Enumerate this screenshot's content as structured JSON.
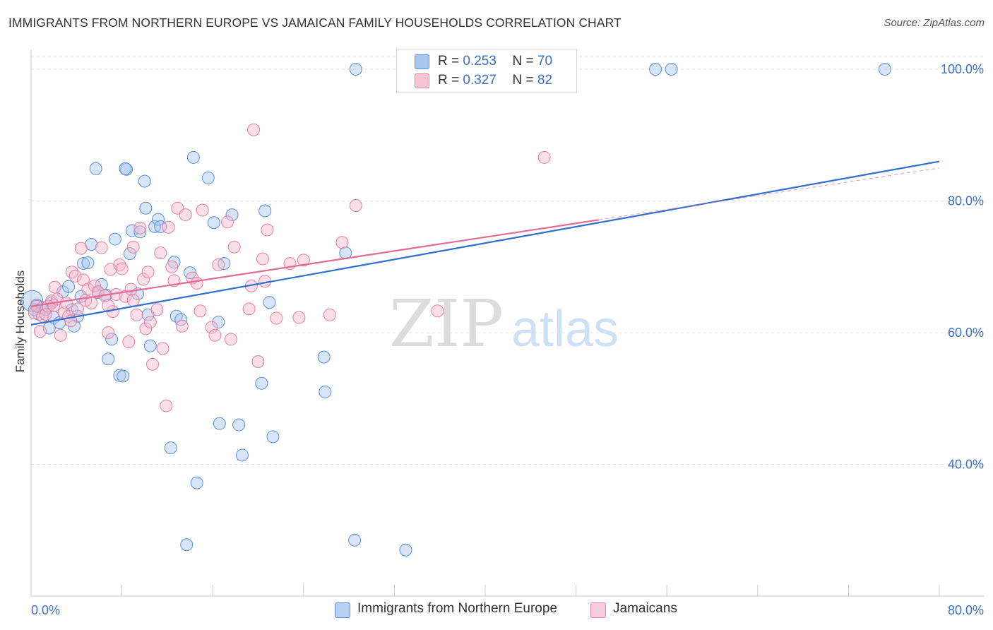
{
  "title": "IMMIGRANTS FROM NORTHERN EUROPE VS JAMAICAN FAMILY HOUSEHOLDS CORRELATION CHART",
  "source": "Source: ZipAtlas.com",
  "watermark": {
    "zip": "ZIP",
    "atlas": "atlas"
  },
  "legend": {
    "r_label": "R =",
    "n_label": "N =",
    "blue": {
      "r": "0.253",
      "n": "70"
    },
    "pink": {
      "r": "0.327",
      "n": "82"
    }
  },
  "colors": {
    "blue_fill": "#a9c6f0",
    "blue_stroke": "#5b8fd6",
    "blue_line": "#2f6fd0",
    "pink_fill": "#f7b8cc",
    "pink_stroke": "#e57fa3",
    "pink_line": "#e26a95",
    "tick_label": "#3a70c8",
    "grid": "#e3e3e3"
  },
  "chart_data": {
    "type": "scatter",
    "title": "IMMIGRANTS FROM NORTHERN EUROPE VS JAMAICAN FAMILY HOUSEHOLDS CORRELATION CHART",
    "xlabel": "",
    "ylabel": "Family Households",
    "xlim": [
      0,
      80
    ],
    "ylim": [
      20,
      103
    ],
    "x_tick_labels": [
      "0.0%",
      "80.0%"
    ],
    "y_ticks": [
      40,
      60,
      80,
      100
    ],
    "y_tick_labels": [
      "40.0%",
      "60.0%",
      "80.0%",
      "100.0%"
    ],
    "grid": true,
    "legend_position": "top-center",
    "series": [
      {
        "name": "Immigrants from Northern Europe",
        "color": "#5b8fd6",
        "r": 0.253,
        "n": 70,
        "trend": {
          "x0": 0,
          "y0": 61.2,
          "x1": 80,
          "y1": 86.0,
          "dash_from": 80
        },
        "points": [
          [
            0.1,
            64.8
          ],
          [
            0.3,
            63.5
          ],
          [
            0.5,
            64.2
          ],
          [
            0.7,
            62.8
          ],
          [
            1.0,
            63.8
          ],
          [
            1.3,
            63.5
          ],
          [
            1.6,
            60.7
          ],
          [
            1.8,
            64.5
          ],
          [
            2.0,
            62.3
          ],
          [
            2.5,
            61.5
          ],
          [
            2.8,
            66.2
          ],
          [
            3.3,
            67.0
          ],
          [
            3.6,
            63.5
          ],
          [
            3.8,
            61.0
          ],
          [
            4.1,
            62.5
          ],
          [
            4.4,
            65.5
          ],
          [
            4.6,
            70.5
          ],
          [
            5.0,
            70.6
          ],
          [
            5.3,
            73.4
          ],
          [
            5.9,
            66.1
          ],
          [
            6.2,
            67.3
          ],
          [
            6.6,
            65.7
          ],
          [
            6.8,
            56.0
          ],
          [
            7.1,
            59.0
          ],
          [
            7.4,
            74.2
          ],
          [
            7.8,
            53.5
          ],
          [
            8.1,
            53.4
          ],
          [
            8.4,
            84.8
          ],
          [
            8.7,
            72.0
          ],
          [
            8.9,
            75.5
          ],
          [
            9.4,
            65.9
          ],
          [
            9.6,
            75.3
          ],
          [
            10.0,
            83.0
          ],
          [
            10.1,
            78.9
          ],
          [
            10.3,
            62.7
          ],
          [
            10.5,
            58.0
          ],
          [
            10.9,
            76.1
          ],
          [
            11.2,
            77.2
          ],
          [
            11.4,
            76.1
          ],
          [
            12.3,
            42.5
          ],
          [
            12.6,
            70.7
          ],
          [
            12.8,
            62.5
          ],
          [
            13.2,
            62.0
          ],
          [
            13.7,
            27.8
          ],
          [
            14.0,
            69.1
          ],
          [
            14.3,
            86.6
          ],
          [
            14.6,
            37.2
          ],
          [
            15.6,
            83.5
          ],
          [
            16.1,
            76.7
          ],
          [
            16.6,
            46.2
          ],
          [
            17.0,
            70.5
          ],
          [
            17.7,
            77.9
          ],
          [
            18.3,
            46.0
          ],
          [
            18.6,
            41.4
          ],
          [
            20.3,
            52.3
          ],
          [
            20.6,
            78.5
          ],
          [
            21.0,
            64.6
          ],
          [
            21.3,
            44.2
          ],
          [
            25.8,
            56.3
          ],
          [
            25.9,
            51.0
          ],
          [
            27.7,
            72.1
          ],
          [
            28.5,
            28.5
          ],
          [
            28.6,
            100.0
          ],
          [
            33.0,
            27.0
          ],
          [
            55.0,
            100.0
          ],
          [
            56.4,
            100.0
          ],
          [
            75.2,
            100.0
          ],
          [
            8.3,
            84.9
          ],
          [
            5.7,
            84.9
          ],
          [
            16.5,
            61.6
          ]
        ]
      },
      {
        "name": "Jamaicans",
        "color": "#e57fa3",
        "r": 0.327,
        "n": 82,
        "trend": {
          "x0": 0,
          "y0": 64.0,
          "x1": 80,
          "y1": 85.0,
          "solid_to": 50,
          "dash_from": 50
        },
        "points": [
          [
            0.3,
            63.0
          ],
          [
            0.5,
            64.0
          ],
          [
            0.8,
            60.2
          ],
          [
            1.0,
            62.5
          ],
          [
            1.3,
            62.8
          ],
          [
            1.5,
            64.0
          ],
          [
            1.8,
            64.8
          ],
          [
            2.0,
            64.1
          ],
          [
            2.3,
            65.1
          ],
          [
            2.6,
            59.6
          ],
          [
            2.9,
            63.0
          ],
          [
            3.1,
            64.5
          ],
          [
            3.3,
            62.5
          ],
          [
            3.6,
            69.2
          ],
          [
            3.9,
            68.6
          ],
          [
            4.1,
            63.6
          ],
          [
            4.4,
            72.8
          ],
          [
            4.6,
            68.0
          ],
          [
            4.8,
            64.9
          ],
          [
            5.0,
            66.6
          ],
          [
            5.3,
            64.5
          ],
          [
            5.6,
            67.1
          ],
          [
            5.9,
            66.2
          ],
          [
            6.2,
            72.9
          ],
          [
            6.5,
            65.6
          ],
          [
            6.8,
            60.0
          ],
          [
            7.0,
            69.6
          ],
          [
            7.2,
            63.2
          ],
          [
            7.5,
            65.8
          ],
          [
            7.8,
            70.3
          ],
          [
            8.0,
            69.7
          ],
          [
            8.3,
            65.5
          ],
          [
            8.6,
            58.6
          ],
          [
            8.8,
            66.6
          ],
          [
            9.0,
            73.0
          ],
          [
            9.3,
            62.7
          ],
          [
            9.6,
            75.9
          ],
          [
            9.9,
            68.1
          ],
          [
            10.1,
            60.6
          ],
          [
            10.3,
            69.2
          ],
          [
            10.5,
            61.6
          ],
          [
            10.7,
            55.2
          ],
          [
            11.1,
            63.5
          ],
          [
            11.4,
            72.1
          ],
          [
            11.6,
            57.6
          ],
          [
            11.9,
            48.9
          ],
          [
            12.1,
            76.0
          ],
          [
            12.6,
            67.9
          ],
          [
            12.9,
            78.9
          ],
          [
            13.3,
            61.0
          ],
          [
            13.6,
            77.9
          ],
          [
            14.2,
            68.3
          ],
          [
            14.6,
            67.5
          ],
          [
            14.9,
            63.3
          ],
          [
            15.1,
            78.6
          ],
          [
            15.9,
            60.8
          ],
          [
            16.2,
            59.6
          ],
          [
            16.5,
            70.3
          ],
          [
            17.3,
            76.8
          ],
          [
            17.6,
            59.0
          ],
          [
            17.9,
            73.0
          ],
          [
            19.2,
            63.6
          ],
          [
            19.4,
            67.1
          ],
          [
            19.6,
            90.8
          ],
          [
            20.0,
            55.6
          ],
          [
            20.4,
            71.2
          ],
          [
            20.6,
            67.8
          ],
          [
            20.8,
            75.6
          ],
          [
            21.6,
            62.2
          ],
          [
            22.8,
            70.5
          ],
          [
            23.6,
            62.3
          ],
          [
            24.0,
            71.0
          ],
          [
            26.3,
            62.7
          ],
          [
            27.4,
            73.7
          ],
          [
            28.6,
            79.3
          ],
          [
            35.8,
            63.3
          ],
          [
            45.2,
            86.6
          ],
          [
            6.8,
            64.1
          ],
          [
            2.1,
            66.9
          ],
          [
            3.5,
            61.8
          ],
          [
            9.0,
            64.9
          ],
          [
            12.4,
            70.0
          ]
        ]
      }
    ]
  },
  "bottom_legend": [
    {
      "label": "Immigrants from Northern Europe"
    },
    {
      "label": "Jamaicans"
    }
  ]
}
